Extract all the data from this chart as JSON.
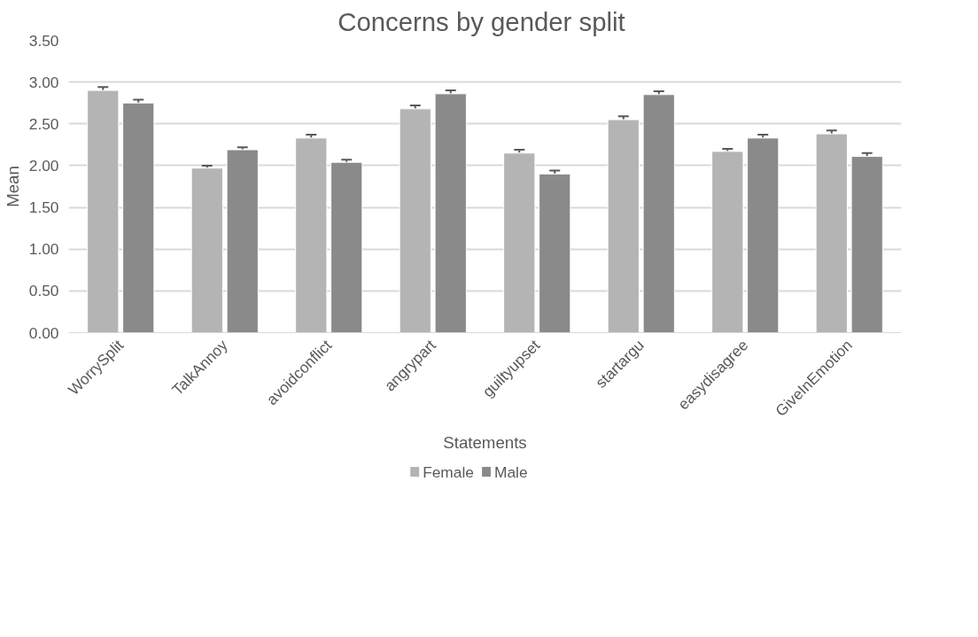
{
  "chart_data": {
    "type": "bar",
    "title": "Concerns  by gender split",
    "xlabel": "Statements",
    "ylabel": "Mean",
    "categories": [
      "WorrySplit",
      "TalkAnnoy",
      "avoidconflict",
      "angrypart",
      "guiltyupset",
      "startargu",
      "easydisagree",
      "GiveInEmotion"
    ],
    "series": [
      {
        "name": "Female",
        "color": "#b4b4b4",
        "values": [
          2.9,
          1.97,
          2.33,
          2.68,
          2.15,
          2.55,
          2.17,
          2.38
        ],
        "errors": [
          0.04,
          0.03,
          0.04,
          0.04,
          0.04,
          0.04,
          0.03,
          0.04
        ]
      },
      {
        "name": "Male",
        "color": "#8a8a8a",
        "values": [
          2.75,
          2.19,
          2.04,
          2.86,
          1.9,
          2.85,
          2.33,
          2.11
        ],
        "errors": [
          0.04,
          0.03,
          0.03,
          0.04,
          0.04,
          0.04,
          0.04,
          0.04
        ]
      }
    ],
    "ylim": [
      0,
      3.5
    ],
    "yticks": [
      {
        "value": 0,
        "label": "0.00"
      },
      {
        "value": 0.5,
        "label": "0.50"
      },
      {
        "value": 1,
        "label": "1.00"
      },
      {
        "value": 1.5,
        "label": "1.50"
      },
      {
        "value": 2,
        "label": "2.00"
      },
      {
        "value": 2.5,
        "label": "2.50"
      },
      {
        "value": 3,
        "label": "3.00"
      },
      {
        "value": 3.5,
        "label": "3.50"
      }
    ],
    "grid": "y",
    "legend": "bottom"
  }
}
